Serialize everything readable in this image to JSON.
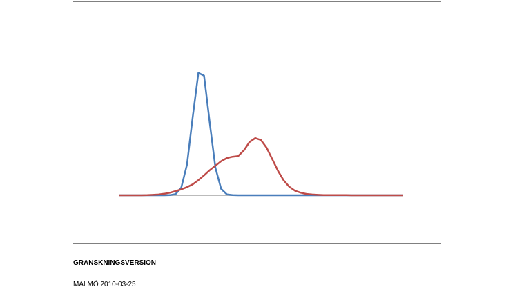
{
  "chart_data": {
    "type": "line",
    "x": [
      0,
      2,
      4,
      6,
      8,
      10,
      12,
      14,
      16,
      18,
      20,
      22,
      24,
      26,
      28,
      30,
      32,
      34,
      36,
      38,
      40,
      42,
      44,
      46,
      48,
      50,
      52,
      54,
      56,
      58,
      60,
      62,
      64,
      66,
      68,
      70,
      72,
      74,
      76,
      78,
      80,
      82,
      84,
      86,
      88,
      90,
      92,
      94,
      96,
      98,
      100
    ],
    "xlim": [
      0,
      100
    ],
    "ylim": [
      0,
      100
    ],
    "series": [
      {
        "color": "#4a7ebb",
        "values": [
          0,
          0,
          0,
          0,
          0,
          0,
          0,
          0,
          0,
          0.1,
          0.9,
          5.9,
          24,
          60.7,
          95.3,
          93.1,
          56.5,
          21.3,
          5,
          0.7,
          0.1,
          0,
          0,
          0,
          0,
          0,
          0,
          0,
          0,
          0,
          0,
          0,
          0,
          0,
          0,
          0,
          0,
          0,
          0,
          0,
          0,
          0,
          0,
          0,
          0,
          0,
          0,
          0,
          0,
          0,
          0
        ]
      },
      {
        "color": "#be4b48",
        "values": [
          0,
          0,
          0,
          0,
          0,
          0.1,
          0.3,
          0.6,
          1.2,
          2,
          3.2,
          4.6,
          6.3,
          8.5,
          11.8,
          15.5,
          19.5,
          23,
          26.5,
          29,
          30,
          30.5,
          35,
          41.5,
          44.5,
          43,
          37,
          28,
          19,
          11.5,
          6.5,
          3.5,
          2,
          1,
          0.6,
          0.3,
          0.1,
          0.1,
          0.1,
          0.1,
          0.1,
          0,
          0,
          0,
          0,
          0,
          0,
          0,
          0,
          0,
          0
        ]
      }
    ]
  },
  "document": {
    "status": "GRANSKNINGSVERSION",
    "place_date": "MALMÖ 2010-03-25"
  }
}
